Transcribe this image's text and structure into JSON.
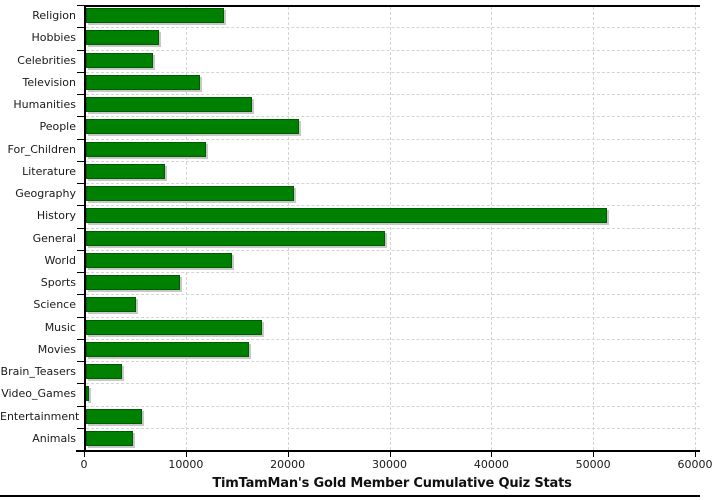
{
  "chart_data": {
    "type": "bar",
    "orientation": "horizontal",
    "title": "TimTamMan's Gold Member Cumulative Quiz Stats",
    "categories": [
      "Religion",
      "Hobbies",
      "Celebrities",
      "Television",
      "Humanities",
      "People",
      "For_Children",
      "Literature",
      "Geography",
      "History",
      "General",
      "World",
      "Sports",
      "Science",
      "Music",
      "Movies",
      "Brain_Teasers",
      "Video_Games",
      "Entertainment",
      "Animals"
    ],
    "values": [
      13600,
      7200,
      6600,
      11200,
      16300,
      20900,
      11800,
      7800,
      20400,
      51200,
      29400,
      14300,
      9200,
      4900,
      17300,
      16000,
      3500,
      250,
      5500,
      4600
    ],
    "xlim": [
      0,
      60000
    ],
    "xticks": [
      0,
      10000,
      20000,
      30000,
      40000,
      50000,
      60000
    ],
    "xtick_labels": [
      "0",
      "10000",
      "20000",
      "30000",
      "40000",
      "50000",
      "60000"
    ],
    "grid": true,
    "legend": "none",
    "bar_color": "#008000",
    "bar_border_color": "#005c00",
    "shadow_color": "#c8c8c8",
    "gridline_color": "#d4d4d4",
    "axis_color": "#000000",
    "background_color": "#ffffff"
  }
}
